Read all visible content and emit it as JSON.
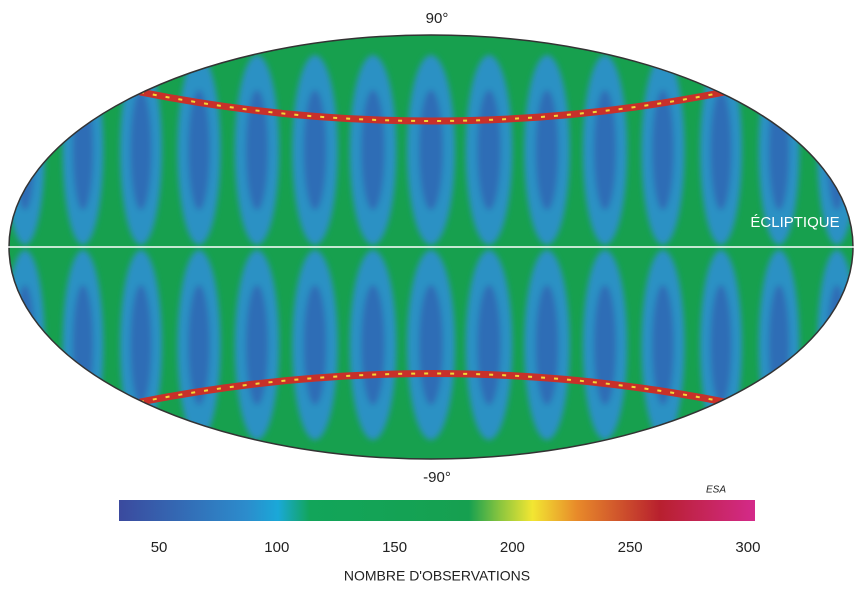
{
  "map": {
    "north_label": "90°",
    "south_label": "-90°",
    "ecliptic_label": "ÉCLIPTIQUE",
    "credit": "ESA"
  },
  "colorbar": {
    "title": "NOMBRE D'OBSERVATIONS",
    "range": [
      33,
      303
    ],
    "ticks": [
      50,
      100,
      150,
      200,
      250,
      300
    ]
  }
}
